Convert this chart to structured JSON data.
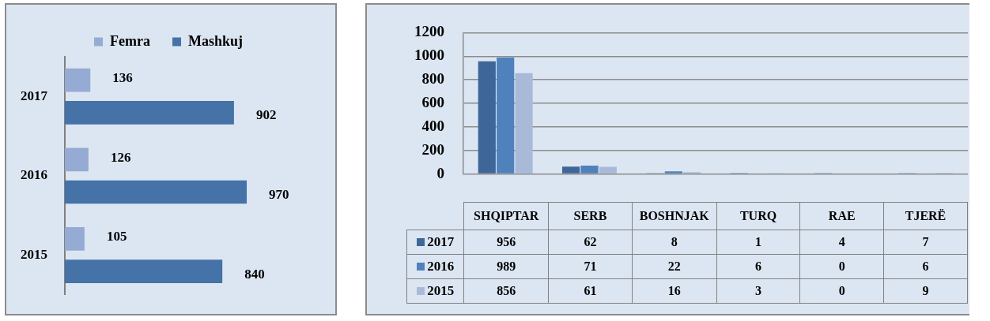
{
  "chart_data": [
    {
      "type": "bar",
      "orientation": "horizontal",
      "categories": [
        "2017",
        "2016",
        "2015"
      ],
      "series": [
        {
          "name": "Femra",
          "color": "#95abd3",
          "values": [
            136,
            126,
            105
          ]
        },
        {
          "name": "Mashkuj",
          "color": "#4572a7",
          "values": [
            902,
            970,
            840
          ]
        }
      ],
      "data_labels": true,
      "legend": "top",
      "grid": false,
      "tick_labels": "y"
    },
    {
      "type": "bar",
      "categories": [
        "SHQIPTAR",
        "SERB",
        "BOSHNJAK",
        "TURQ",
        "RAE",
        "TJERË"
      ],
      "series": [
        {
          "name": "2017",
          "color": "#3f6698",
          "values": [
            956,
            62,
            8,
            1,
            4,
            7
          ]
        },
        {
          "name": "2016",
          "color": "#4f81bd",
          "values": [
            989,
            71,
            22,
            6,
            0,
            6
          ]
        },
        {
          "name": "2015",
          "color": "#a9bad9",
          "values": [
            856,
            61,
            16,
            3,
            0,
            9
          ]
        }
      ],
      "ylim": [
        0,
        1200
      ],
      "yticks": [
        0,
        200,
        400,
        600,
        800,
        1000,
        1200
      ],
      "grid": "y",
      "data_labels": true,
      "legend": "bottom"
    }
  ]
}
